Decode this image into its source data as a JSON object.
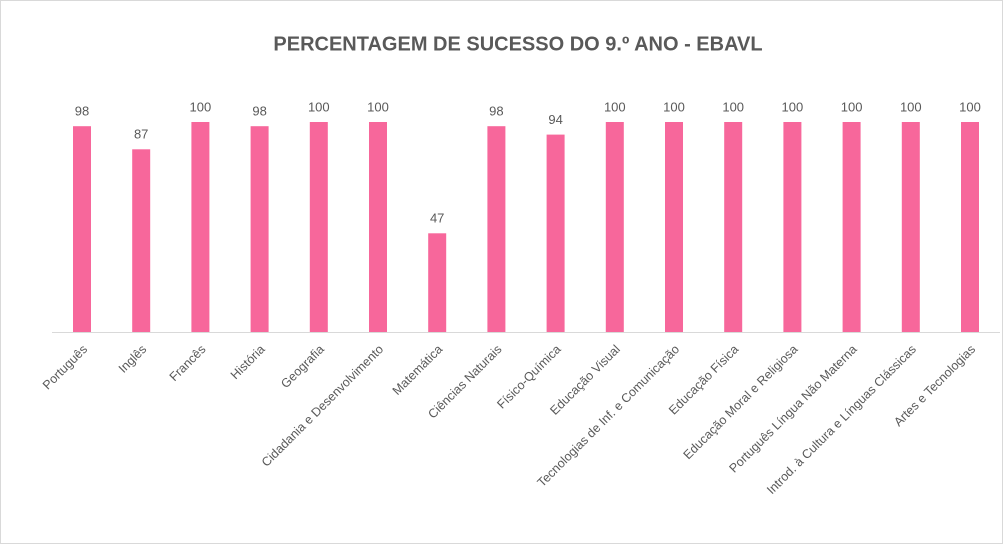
{
  "chart_data": {
    "type": "bar",
    "title": "PERCENTAGEM DE SUCESSO DO 9.º ANO - EBAVL",
    "categories": [
      "Português",
      "Inglês",
      "Francês",
      "História",
      "Geografia",
      "Cidadania e Desenvolvimento",
      "Matemática",
      "Ciências Naturais",
      "Físico-Química",
      "Educação Visual",
      "Tecnologias de Inf. e Comunicação",
      "Educação Física",
      "Educação Moral e Religiosa",
      "Português Língua Não Materna",
      "Introd. à Cultura e Línguas Clássicas",
      "Artes e Tecnologias"
    ],
    "values": [
      98,
      87,
      100,
      98,
      100,
      100,
      47,
      98,
      94,
      100,
      100,
      100,
      100,
      100,
      100,
      100
    ],
    "color": "#f7679b"
  }
}
